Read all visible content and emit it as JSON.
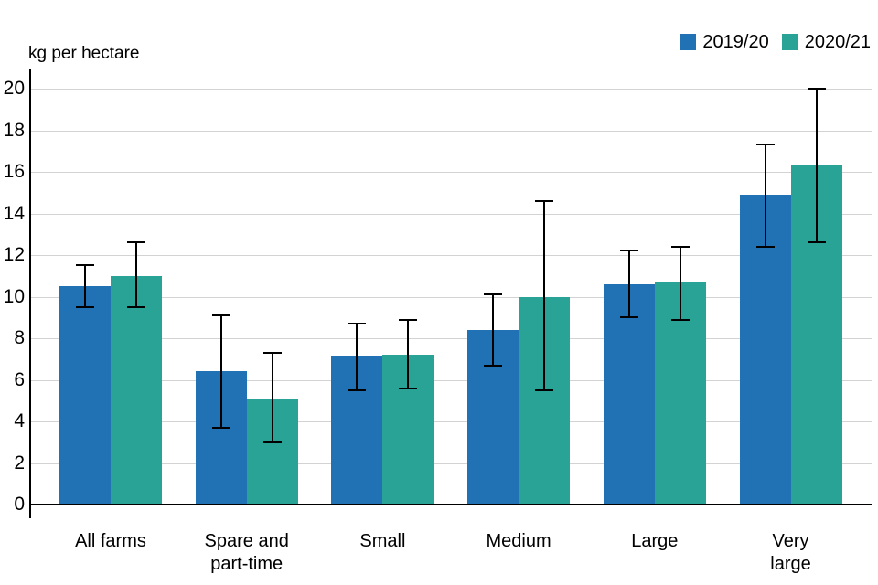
{
  "chart_data": {
    "type": "bar",
    "title": "",
    "ylabel": "kg per hectare",
    "xlabel": "",
    "categories": [
      "All farms",
      "Spare and\npart-time",
      "Small",
      "Medium",
      "Large",
      "Very\nlarge"
    ],
    "ylim": [
      0,
      20
    ],
    "yticks": [
      0,
      2,
      4,
      6,
      8,
      10,
      12,
      14,
      16,
      18,
      20
    ],
    "grid": true,
    "legend_position": "top-right",
    "error_bar_color": "#000000",
    "grid_color": "#d3d3d3",
    "series": [
      {
        "name": "2019/20",
        "color": "#2171b5",
        "values": [
          10.5,
          6.4,
          7.1,
          8.4,
          10.6,
          14.9
        ],
        "error_low": [
          9.5,
          3.7,
          5.5,
          6.7,
          9.0,
          12.4
        ],
        "error_high": [
          11.5,
          9.1,
          8.7,
          10.1,
          12.2,
          17.3
        ]
      },
      {
        "name": "2020/21",
        "color": "#2aa397",
        "values": [
          11.0,
          5.1,
          7.2,
          10.0,
          10.7,
          16.3
        ],
        "error_low": [
          9.5,
          3.0,
          5.6,
          5.5,
          8.9,
          12.6
        ],
        "error_high": [
          12.6,
          7.3,
          8.9,
          14.6,
          12.4,
          20.0
        ]
      }
    ]
  }
}
